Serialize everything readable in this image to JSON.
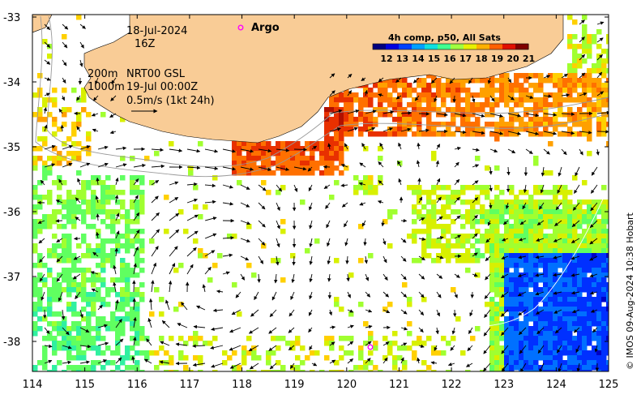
{
  "header": {
    "date": "18-Jul-2024",
    "hour": "16Z",
    "argo_label": "Argo",
    "depth_200": "200m",
    "depth_1000": "1000m",
    "product": "NRT00 GSL",
    "product_time": "19-Jul 00:00Z",
    "scale_label": "0.5m/s (1kt 24h)"
  },
  "colorbar": {
    "title": "4h comp, p50, All Sats",
    "ticks": [
      "12",
      "13",
      "14",
      "15",
      "16",
      "17",
      "18",
      "19",
      "20",
      "21"
    ],
    "colors": [
      "#00007f",
      "#0000e0",
      "#0040ff",
      "#00a0ff",
      "#10e0e0",
      "#40ff90",
      "#a0ff40",
      "#e8f000",
      "#ffb000",
      "#ff6000",
      "#e01000",
      "#800000"
    ]
  },
  "axes": {
    "x_ticks": [
      "114",
      "115",
      "116",
      "117",
      "118",
      "119",
      "120",
      "121",
      "122",
      "123",
      "124",
      "125"
    ],
    "y_ticks": [
      "-33",
      "-34",
      "-35",
      "-36",
      "-37",
      "-38"
    ]
  },
  "credit": "© IMOS 09-Aug-2024 10:38 Hobart",
  "colors": {
    "land": "#f9cc96",
    "argo_marker": "#ff00ff",
    "contour": "#9a9a9a"
  }
}
